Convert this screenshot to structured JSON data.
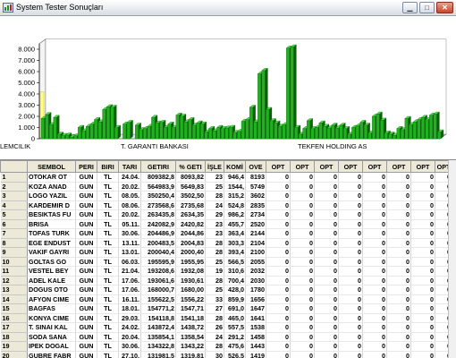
{
  "window": {
    "title": "System Tester Sonuçları",
    "app_icon": "app-icon",
    "buttons": {
      "minimize": "minimize-icon",
      "maximize": "maximize-icon",
      "close": "close-icon"
    }
  },
  "colors": {
    "bar": "#22b020",
    "bar_light": "#48e040",
    "bar_dark": "#0c5c0c",
    "highlight_bar": "#ffff80"
  },
  "chart_data": {
    "type": "bar",
    "title": "",
    "xlabel": "",
    "ylabel": "",
    "ylim": [
      0,
      8500
    ],
    "yticks": [
      "8.000",
      "7.000",
      "6.000",
      "5.000",
      "4.000",
      "3.000",
      "2.000",
      "1.000",
      "0"
    ],
    "x_tick_labels": [
      "LEMCILIK",
      "T. GARANTI BANKASI",
      "TEKFEN HOLDING AS"
    ],
    "values": [
      1800,
      2150,
      1250,
      1900,
      400,
      280,
      320,
      150,
      250,
      1000,
      700,
      1100,
      1300,
      1700,
      1500,
      2600,
      2850,
      2800,
      1000,
      0,
      1300,
      1450,
      0,
      1200,
      800,
      900,
      1100,
      1900,
      1400,
      1450,
      1000,
      1300,
      1000,
      2100,
      2000,
      1500,
      1700,
      1200,
      1400,
      1300,
      600,
      900,
      700,
      1000,
      900,
      950,
      1000,
      550,
      650,
      1550,
      1700,
      2800,
      1500,
      5800,
      6100,
      2600,
      1600,
      1400,
      1100,
      1250,
      8100,
      8200,
      1000,
      400,
      900,
      1600,
      900,
      1000,
      1400,
      1100,
      950,
      1200,
      950,
      1200,
      900,
      400,
      1000,
      1150,
      1450,
      1200,
      500,
      2000,
      2200,
      1650,
      500,
      400,
      300,
      900,
      800,
      1800,
      1250,
      1500,
      1700,
      1900,
      1700,
      2100,
      2200,
      600
    ]
  },
  "table": {
    "columns": [
      "",
      "SEMBOL",
      "PERI",
      "BIRI",
      "TARI",
      "GETIRI",
      "% GETI",
      "İŞLE",
      "KOMİ",
      "OVE",
      "OPT",
      "OPT",
      "OPT",
      "OPT",
      "OPT",
      "OPT",
      "OPT",
      "OPT"
    ],
    "rows": [
      [
        "1",
        "OTOKAR OT",
        "GUN",
        "TL",
        "24.04.",
        "809382,8",
        "8093,82",
        "23",
        "946,4",
        "8193",
        "0",
        "0",
        "0",
        "0",
        "0",
        "0",
        "0",
        "0"
      ],
      [
        "2",
        "KOZA ANAD",
        "GUN",
        "TL",
        "20.02.",
        "564983,9",
        "5649,83",
        "25",
        "1544,",
        "5749",
        "0",
        "0",
        "0",
        "0",
        "0",
        "0",
        "0",
        "0"
      ],
      [
        "3",
        "LOGO YAZIL",
        "GUN",
        "TL",
        "08.05.",
        "350250,4",
        "3502,50",
        "28",
        "315,2",
        "3602",
        "0",
        "0",
        "0",
        "0",
        "0",
        "0",
        "0",
        "0"
      ],
      [
        "4",
        "KARDEMIR D",
        "GUN",
        "TL",
        "08.06.",
        "273568,6",
        "2735,68",
        "24",
        "524,8",
        "2835",
        "0",
        "0",
        "0",
        "0",
        "0",
        "0",
        "0",
        "0"
      ],
      [
        "5",
        "BESIKTAS FU",
        "GUN",
        "TL",
        "20.02.",
        "263435,8",
        "2634,35",
        "29",
        "986,2",
        "2734",
        "0",
        "0",
        "0",
        "0",
        "0",
        "0",
        "0",
        "0"
      ],
      [
        "6",
        "BRISA",
        "GUN",
        "TL",
        "05.11.",
        "242082,9",
        "2420,82",
        "23",
        "455,7",
        "2520",
        "0",
        "0",
        "0",
        "0",
        "0",
        "0",
        "0",
        "0"
      ],
      [
        "7",
        "TOFAS TURK",
        "GUN",
        "TL",
        "30.06.",
        "204486,9",
        "2044,86",
        "23",
        "363,4",
        "2144",
        "0",
        "0",
        "0",
        "0",
        "0",
        "0",
        "0",
        "0"
      ],
      [
        "8",
        "EGE ENDUST",
        "GUN",
        "TL",
        "13.11.",
        "200483,5",
        "2004,83",
        "28",
        "303,3",
        "2104",
        "0",
        "0",
        "0",
        "0",
        "0",
        "0",
        "0",
        "0"
      ],
      [
        "9",
        "VAKIF GAYRI",
        "GUN",
        "TL",
        "13.01.",
        "200040,4",
        "2000,40",
        "28",
        "393,4",
        "2100",
        "0",
        "0",
        "0",
        "0",
        "0",
        "0",
        "0",
        "0"
      ],
      [
        "10",
        "GOLTAS GO",
        "GUN",
        "TL",
        "06.03.",
        "195595,9",
        "1955,95",
        "25",
        "566,5",
        "2055",
        "0",
        "0",
        "0",
        "0",
        "0",
        "0",
        "0",
        "0"
      ],
      [
        "11",
        "VESTEL BEY",
        "GUN",
        "TL",
        "21.04.",
        "193208,6",
        "1932,08",
        "19",
        "310,6",
        "2032",
        "0",
        "0",
        "0",
        "0",
        "0",
        "0",
        "0",
        "0"
      ],
      [
        "12",
        "ADEL KALE",
        "GUN",
        "TL",
        "17.06.",
        "193061,6",
        "1930,61",
        "28",
        "700,4",
        "2030",
        "0",
        "0",
        "0",
        "0",
        "0",
        "0",
        "0",
        "0"
      ],
      [
        "13",
        "DOGUS OTO",
        "GUN",
        "TL",
        "17.06.",
        "168000,7",
        "1680,00",
        "25",
        "428,0",
        "1780",
        "0",
        "0",
        "0",
        "0",
        "0",
        "0",
        "0",
        "0"
      ],
      [
        "14",
        "AFYON CIME",
        "GUN",
        "TL",
        "16.11.",
        "155622,5",
        "1556,22",
        "33",
        "859,9",
        "1656",
        "0",
        "0",
        "0",
        "0",
        "0",
        "0",
        "0",
        "0"
      ],
      [
        "15",
        "BAGFAS",
        "GUN",
        "TL",
        "18.01.",
        "154771,2",
        "1547,71",
        "27",
        "691,0",
        "1647",
        "0",
        "0",
        "0",
        "0",
        "0",
        "0",
        "0",
        "0"
      ],
      [
        "16",
        "KONYA CIME",
        "GUN",
        "TL",
        "29.03.",
        "154118,8",
        "1541,18",
        "28",
        "465,0",
        "1641",
        "0",
        "0",
        "0",
        "0",
        "0",
        "0",
        "0",
        "0"
      ],
      [
        "17",
        "T. SINAI KAL",
        "GUN",
        "TL",
        "24.02.",
        "143872,4",
        "1438,72",
        "26",
        "557,5",
        "1538",
        "0",
        "0",
        "0",
        "0",
        "0",
        "0",
        "0",
        "0"
      ],
      [
        "18",
        "SODA SANA",
        "GUN",
        "TL",
        "20.04.",
        "135854,1",
        "1358,54",
        "24",
        "291,2",
        "1458",
        "0",
        "0",
        "0",
        "0",
        "0",
        "0",
        "0",
        "0"
      ],
      [
        "19",
        "IPEK DOGAL",
        "GUN",
        "TL",
        "30.06.",
        "134322,8",
        "1343,22",
        "28",
        "475,6",
        "1443",
        "0",
        "0",
        "0",
        "0",
        "0",
        "0",
        "0",
        "0"
      ],
      [
        "20",
        "GUBRE FABR",
        "GUN",
        "TL",
        "27.10.",
        "131981,5",
        "1319,81",
        "30",
        "526,5",
        "1419",
        "0",
        "0",
        "0",
        "0",
        "0",
        "0",
        "0",
        "0"
      ]
    ]
  }
}
